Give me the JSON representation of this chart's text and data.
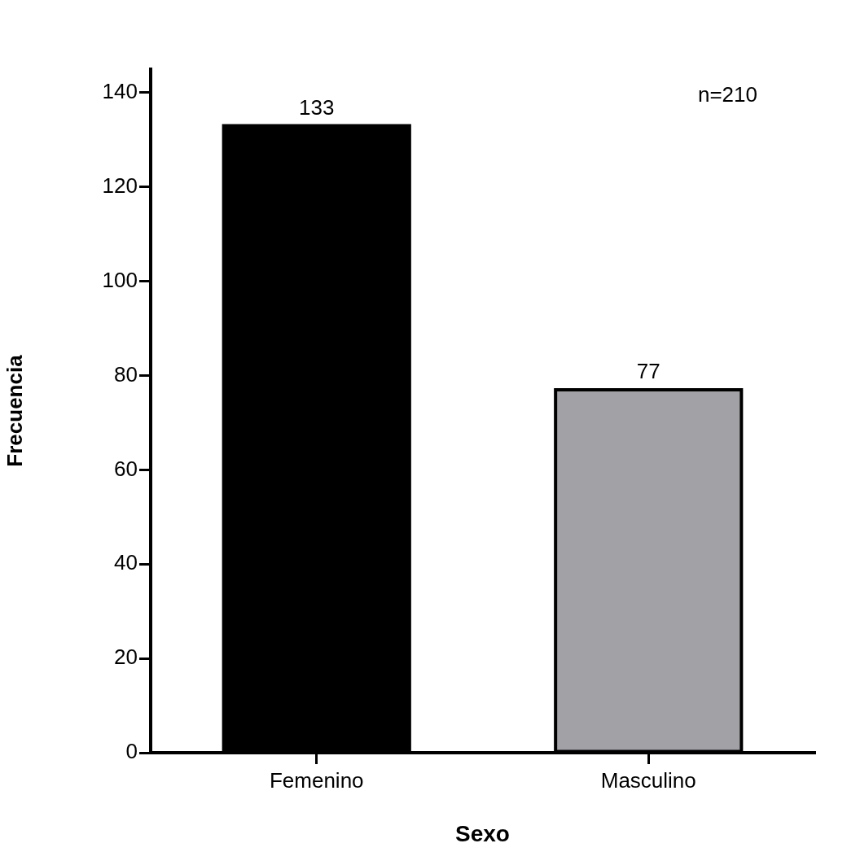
{
  "chart_data": {
    "type": "bar",
    "xlabel": "Sexo",
    "ylabel": "Frecuencia",
    "categories": [
      "Femenino",
      "Masculino"
    ],
    "values": [
      133,
      77
    ],
    "colors": [
      "#000000",
      "#a2a1a6"
    ],
    "ylim": [
      0,
      145
    ],
    "yticks": [
      0,
      20,
      40,
      60,
      80,
      100,
      120,
      140
    ],
    "grid": false,
    "legend": false,
    "data_labels": true,
    "annotations": [
      "n=210"
    ]
  }
}
